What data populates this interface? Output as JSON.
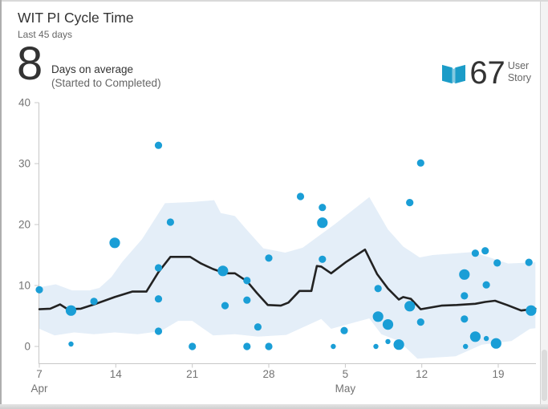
{
  "widget": {
    "title": "WIT PI Cycle Time",
    "subtitle": "Last 45 days",
    "summary": {
      "value": "8",
      "label": "Days on average",
      "sublabel": "(Started to Completed)",
      "count": "67",
      "count_label_line1": "User",
      "count_label_line2": "Story",
      "count_icon": "book-icon"
    }
  },
  "colors": {
    "accent_dot": "#1a9ed6",
    "band": "#e4eef8",
    "trend_line": "#222222",
    "axis": "#c8c8c8",
    "tick_label": "#737373",
    "title_text": "#333333",
    "muted_text": "#666666",
    "book_icon": "#1b9cc8"
  },
  "chart_data": {
    "type": "scatter",
    "title": "WIT PI Cycle Time",
    "xlabel": "",
    "ylabel": "",
    "grid": false,
    "legend": "none",
    "y_axis": {
      "ticks": [
        0,
        10,
        20,
        30,
        40
      ],
      "range": [
        -2.8,
        40
      ]
    },
    "x_axis": {
      "day_zero": "Apr 7",
      "span_days": 45,
      "tick_days": [
        0,
        7,
        14,
        21,
        28,
        35,
        42
      ],
      "tick_labels": [
        "7",
        "14",
        "21",
        "28",
        "5",
        "12",
        "19"
      ],
      "month_labels": [
        {
          "label": "Apr",
          "day": 0
        },
        {
          "label": "May",
          "day": 28
        }
      ]
    },
    "scatter_format": [
      "day_offset_from_Apr7",
      "cycle_time_days",
      "dot_size(s|m|l)"
    ],
    "scatter": [
      [
        0,
        9.3,
        "m"
      ],
      [
        2.9,
        5.9,
        "l"
      ],
      [
        2.9,
        0.4,
        "s"
      ],
      [
        5,
        7.4,
        "m"
      ],
      [
        6.9,
        17,
        "l"
      ],
      [
        10.9,
        33,
        "m"
      ],
      [
        10.9,
        12.9,
        "m"
      ],
      [
        10.9,
        7.8,
        "m"
      ],
      [
        10.9,
        2.5,
        "m"
      ],
      [
        12,
        20.4,
        "m"
      ],
      [
        14,
        0,
        "m"
      ],
      [
        16.8,
        12.4,
        "l"
      ],
      [
        17,
        6.7,
        "m"
      ],
      [
        19,
        10.8,
        "m"
      ],
      [
        19,
        7.6,
        "m"
      ],
      [
        19,
        0,
        "m"
      ],
      [
        20,
        3.2,
        "m"
      ],
      [
        21,
        14.5,
        "m"
      ],
      [
        21,
        0,
        "m"
      ],
      [
        23.9,
        24.6,
        "m"
      ],
      [
        25.9,
        22.8,
        "m"
      ],
      [
        25.9,
        20.3,
        "l"
      ],
      [
        25.9,
        14.3,
        "m"
      ],
      [
        26.9,
        0,
        "s"
      ],
      [
        27.9,
        2.6,
        "m"
      ],
      [
        30.8,
        0,
        "s"
      ],
      [
        31,
        9.5,
        "m"
      ],
      [
        31,
        4.9,
        "l"
      ],
      [
        31.9,
        3.6,
        "l"
      ],
      [
        31.9,
        0.8,
        "s"
      ],
      [
        32.9,
        0.3,
        "l"
      ],
      [
        33.9,
        23.6,
        "m"
      ],
      [
        33.9,
        6.6,
        "l"
      ],
      [
        34.9,
        30.1,
        "m"
      ],
      [
        34.9,
        4,
        "m"
      ],
      [
        38.9,
        11.8,
        "l"
      ],
      [
        38.9,
        8.3,
        "m"
      ],
      [
        38.9,
        4.5,
        "m"
      ],
      [
        39,
        0,
        "s"
      ],
      [
        39.9,
        15.3,
        "m"
      ],
      [
        39.9,
        1.6,
        "l"
      ],
      [
        40.8,
        15.7,
        "m"
      ],
      [
        40.9,
        10.1,
        "m"
      ],
      [
        40.9,
        1.3,
        "s"
      ],
      [
        41.9,
        13.7,
        "m"
      ],
      [
        41.8,
        0.5,
        "l"
      ],
      [
        44.8,
        13.8,
        "m"
      ],
      [
        45,
        5.9,
        "l"
      ]
    ],
    "trend": [
      [
        0,
        6.1
      ],
      [
        1,
        6.2
      ],
      [
        1.9,
        6.9
      ],
      [
        2.6,
        6.1
      ],
      [
        3.8,
        6.2
      ],
      [
        5,
        6.9
      ],
      [
        6.9,
        8.1
      ],
      [
        8.5,
        9
      ],
      [
        9.8,
        9
      ],
      [
        10.9,
        12.2
      ],
      [
        12,
        14.7
      ],
      [
        13.8,
        14.7
      ],
      [
        14.8,
        13.6
      ],
      [
        15.9,
        12.7
      ],
      [
        17,
        12
      ],
      [
        17.9,
        12
      ],
      [
        19,
        10.7
      ],
      [
        19.9,
        8.8
      ],
      [
        20.9,
        6.8
      ],
      [
        22.1,
        6.7
      ],
      [
        22.8,
        7.2
      ],
      [
        23.8,
        9.1
      ],
      [
        24.9,
        9.1
      ],
      [
        25.4,
        13.2
      ],
      [
        25.8,
        13.1
      ],
      [
        26.7,
        12
      ],
      [
        28.1,
        13.9
      ],
      [
        29.8,
        15.9
      ],
      [
        30.9,
        11.9
      ],
      [
        31.9,
        9.5
      ],
      [
        32.9,
        7.7
      ],
      [
        33.3,
        8.1
      ],
      [
        34,
        7.8
      ],
      [
        34.9,
        6.1
      ],
      [
        36.8,
        6.7
      ],
      [
        38.2,
        6.8
      ],
      [
        39.9,
        7
      ],
      [
        40.8,
        7.3
      ],
      [
        41.7,
        7.5
      ],
      [
        42.8,
        6.8
      ],
      [
        44.1,
        5.9
      ],
      [
        45.4,
        6.2
      ]
    ],
    "band": {
      "top": [
        [
          0,
          9.7
        ],
        [
          1.5,
          10.2
        ],
        [
          3,
          9.2
        ],
        [
          4.6,
          9.2
        ],
        [
          5.5,
          9.6
        ],
        [
          6.6,
          11.4
        ],
        [
          7.6,
          13.9
        ],
        [
          9.4,
          17.6
        ],
        [
          11.5,
          23.5
        ],
        [
          14,
          23.7
        ],
        [
          16,
          24
        ],
        [
          16.6,
          21.9
        ],
        [
          17.9,
          21.4
        ],
        [
          18.9,
          19.3
        ],
        [
          20.5,
          16.1
        ],
        [
          22.5,
          15.4
        ],
        [
          24.1,
          16.2
        ],
        [
          27,
          20
        ],
        [
          30.2,
          24.5
        ],
        [
          31.9,
          19.2
        ],
        [
          33.3,
          16.4
        ],
        [
          34.8,
          14.6
        ],
        [
          36,
          15
        ],
        [
          39.7,
          15.5
        ],
        [
          42.9,
          13.6
        ],
        [
          45.4,
          13.8
        ]
      ],
      "bottom": [
        [
          0,
          2.9
        ],
        [
          1.4,
          1.8
        ],
        [
          3.2,
          2.3
        ],
        [
          5,
          2
        ],
        [
          6.9,
          2.3
        ],
        [
          9,
          2
        ],
        [
          11.1,
          2.5
        ],
        [
          12.7,
          4.2
        ],
        [
          14,
          4.2
        ],
        [
          15.9,
          1.8
        ],
        [
          17.9,
          2
        ],
        [
          20,
          1.6
        ],
        [
          22.6,
          1.9
        ],
        [
          25.8,
          4.5
        ],
        [
          26.7,
          2.9
        ],
        [
          30.2,
          4.6
        ],
        [
          31.3,
          2
        ],
        [
          32.9,
          0.9
        ],
        [
          34.6,
          -2
        ],
        [
          38.1,
          -1.6
        ],
        [
          40.5,
          0.3
        ],
        [
          43.2,
          0.9
        ],
        [
          44.9,
          2.9
        ],
        [
          45.4,
          3
        ]
      ]
    }
  }
}
